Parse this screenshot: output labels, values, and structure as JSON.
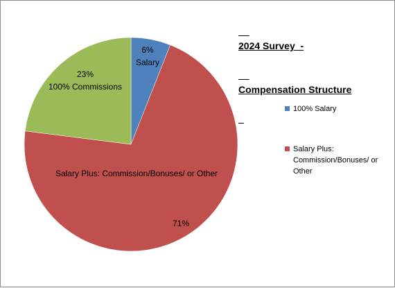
{
  "chart_data": {
    "type": "pie",
    "title_lines": [
      "2024 Survey  -",
      "Compensation Structure"
    ],
    "legend_position": "right",
    "start_angle_deg": 0,
    "direction": "clockwise",
    "slices": [
      {
        "key": "salary",
        "value": 6,
        "percent_label": "6%",
        "category_label": "Salary",
        "legend_lines": [
          "100% Salary"
        ],
        "color": "#4f81bd",
        "in_legend": true
      },
      {
        "key": "salary-plus",
        "value": 71,
        "percent_label": "71%",
        "category_label": "Salary Plus: Commission/Bonuses/ or Other",
        "legend_lines": [
          "Salary Plus:",
          "Commission/Bonuses/ or",
          "Other"
        ],
        "color": "#c0504d",
        "in_legend": true
      },
      {
        "key": "commissions",
        "value": 23,
        "percent_label": "23%",
        "category_label": "100% Commissions",
        "legend_lines": [],
        "color": "#9bbb59",
        "in_legend": false
      }
    ]
  }
}
